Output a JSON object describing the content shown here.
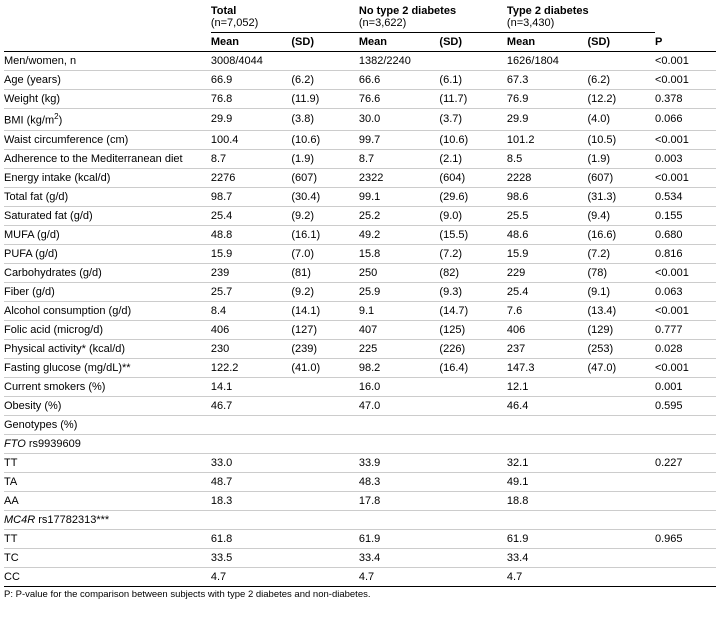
{
  "groups": {
    "total": {
      "title": "Total",
      "n": "(n=7,052)"
    },
    "no_t2d": {
      "title": "No type 2 diabetes",
      "n": "(n=3,622)"
    },
    "t2d": {
      "title": "Type 2 diabetes",
      "n": "(n=3,430)"
    }
  },
  "cols": {
    "mean": "Mean",
    "sd": "(SD)",
    "p": "P"
  },
  "rows": [
    {
      "label": "Men/women, n",
      "total_mean": "3008/4044",
      "total_sd": "",
      "no_mean": "1382/2240",
      "no_sd": "",
      "t2d_mean": "1626/1804",
      "t2d_sd": "",
      "p": "<0.001"
    },
    {
      "label": "Age (years)",
      "total_mean": "66.9",
      "total_sd": "(6.2)",
      "no_mean": "66.6",
      "no_sd": "(6.1)",
      "t2d_mean": "67.3",
      "t2d_sd": "(6.2)",
      "p": "<0.001"
    },
    {
      "label": "Weight (kg)",
      "total_mean": "76.8",
      "total_sd": "(11.9)",
      "no_mean": "76.6",
      "no_sd": "(11.7)",
      "t2d_mean": "76.9",
      "t2d_sd": "(12.2)",
      "p": "0.378"
    },
    {
      "label_html": "BMI (kg/m<sup>2</sup>)",
      "total_mean": "29.9",
      "total_sd": "(3.8)",
      "no_mean": "30.0",
      "no_sd": "(3.7)",
      "t2d_mean": "29.9",
      "t2d_sd": "(4.0)",
      "p": "0.066"
    },
    {
      "label": "Waist circumference (cm)",
      "total_mean": "100.4",
      "total_sd": "(10.6)",
      "no_mean": "99.7",
      "no_sd": "(10.6)",
      "t2d_mean": "101.2",
      "t2d_sd": "(10.5)",
      "p": "<0.001"
    },
    {
      "label": "Adherence to the Mediterranean diet",
      "total_mean": "8.7",
      "total_sd": "(1.9)",
      "no_mean": "8.7",
      "no_sd": "(2.1)",
      "t2d_mean": "8.5",
      "t2d_sd": "(1.9)",
      "p": "0.003"
    },
    {
      "label": "Energy intake (kcal/d)",
      "total_mean": "2276",
      "total_sd": "(607)",
      "no_mean": "2322",
      "no_sd": "(604)",
      "t2d_mean": "2228",
      "t2d_sd": "(607)",
      "p": "<0.001"
    },
    {
      "label": "Total fat (g/d)",
      "total_mean": "98.7",
      "total_sd": "(30.4)",
      "no_mean": "99.1",
      "no_sd": "(29.6)",
      "t2d_mean": "98.6",
      "t2d_sd": "(31.3)",
      "p": "0.534"
    },
    {
      "label": "Saturated fat (g/d)",
      "total_mean": "25.4",
      "total_sd": "(9.2)",
      "no_mean": "25.2",
      "no_sd": "(9.0)",
      "t2d_mean": "25.5",
      "t2d_sd": "(9.4)",
      "p": "0.155"
    },
    {
      "label": "MUFA (g/d)",
      "total_mean": "48.8",
      "total_sd": "(16.1)",
      "no_mean": "49.2",
      "no_sd": "(15.5)",
      "t2d_mean": "48.6",
      "t2d_sd": "(16.6)",
      "p": "0.680"
    },
    {
      "label": "PUFA (g/d)",
      "total_mean": "15.9",
      "total_sd": "(7.0)",
      "no_mean": "15.8",
      "no_sd": "(7.2)",
      "t2d_mean": "15.9",
      "t2d_sd": "(7.2)",
      "p": "0.816"
    },
    {
      "label": "Carbohydrates (g/d)",
      "total_mean": "239",
      "total_sd": "(81)",
      "no_mean": "250",
      "no_sd": "(82)",
      "t2d_mean": "229",
      "t2d_sd": "(78)",
      "p": "<0.001"
    },
    {
      "label": "Fiber (g/d)",
      "total_mean": "25.7",
      "total_sd": "(9.2)",
      "no_mean": "25.9",
      "no_sd": "(9.3)",
      "t2d_mean": "25.4",
      "t2d_sd": "(9.1)",
      "p": "0.063"
    },
    {
      "label": "Alcohol consumption (g/d)",
      "total_mean": "8.4",
      "total_sd": "(14.1)",
      "no_mean": "9.1",
      "no_sd": "(14.7)",
      "t2d_mean": "7.6",
      "t2d_sd": "(13.4)",
      "p": "<0.001"
    },
    {
      "label": "Folic acid (microg/d)",
      "total_mean": "406",
      "total_sd": "(127)",
      "no_mean": "407",
      "no_sd": "(125)",
      "t2d_mean": "406",
      "t2d_sd": "(129)",
      "p": "0.777"
    },
    {
      "label": "Physical activity* (kcal/d)",
      "total_mean": "230",
      "total_sd": "(239)",
      "no_mean": "225",
      "no_sd": "(226)",
      "t2d_mean": "237",
      "t2d_sd": "(253)",
      "p": "0.028"
    },
    {
      "label": "Fasting glucose (mg/dL)**",
      "total_mean": "122.2",
      "total_sd": "(41.0)",
      "no_mean": "98.2",
      "no_sd": "(16.4)",
      "t2d_mean": "147.3",
      "t2d_sd": "(47.0)",
      "p": "<0.001"
    },
    {
      "label": "Current smokers (%)",
      "total_mean": "14.1",
      "total_sd": "",
      "no_mean": "16.0",
      "no_sd": "",
      "t2d_mean": "12.1",
      "t2d_sd": "",
      "p": "0.001"
    },
    {
      "label": "Obesity (%)",
      "total_mean": "46.7",
      "total_sd": "",
      "no_mean": "47.0",
      "no_sd": "",
      "t2d_mean": "46.4",
      "t2d_sd": "",
      "p": "0.595"
    },
    {
      "label": "Genotypes (%)",
      "section": true
    },
    {
      "label_html": "<i>FTO</i> rs9939609",
      "section": true
    },
    {
      "label": "TT",
      "total_mean": "33.0",
      "total_sd": "",
      "no_mean": "33.9",
      "no_sd": "",
      "t2d_mean": "32.1",
      "t2d_sd": "",
      "p": "0.227"
    },
    {
      "label": "TA",
      "total_mean": "48.7",
      "total_sd": "",
      "no_mean": "48.3",
      "no_sd": "",
      "t2d_mean": "49.1",
      "t2d_sd": "",
      "p": ""
    },
    {
      "label": "AA",
      "total_mean": "18.3",
      "total_sd": "",
      "no_mean": "17.8",
      "no_sd": "",
      "t2d_mean": "18.8",
      "t2d_sd": "",
      "p": ""
    },
    {
      "label_html": "<i>MC4R</i> rs17782313***",
      "section": true
    },
    {
      "label": "TT",
      "total_mean": "61.8",
      "total_sd": "",
      "no_mean": "61.9",
      "no_sd": "",
      "t2d_mean": "61.9",
      "t2d_sd": "",
      "p": "0.965"
    },
    {
      "label": "TC",
      "total_mean": "33.5",
      "total_sd": "",
      "no_mean": "33.4",
      "no_sd": "",
      "t2d_mean": "33.4",
      "t2d_sd": "",
      "p": ""
    },
    {
      "label": "CC",
      "total_mean": "4.7",
      "total_sd": "",
      "no_mean": "4.7",
      "no_sd": "",
      "t2d_mean": "4.7",
      "t2d_sd": "",
      "p": "",
      "last": true
    }
  ],
  "footnote": "P: P-value for the comparison between subjects with type 2 diabetes and non-diabetes."
}
